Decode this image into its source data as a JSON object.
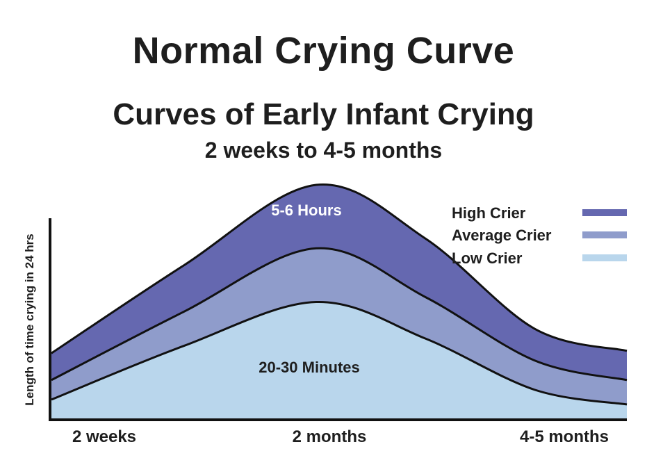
{
  "chart_data": {
    "type": "area",
    "title": "Normal Crying Curve",
    "subtitle": "Curves of Early Infant Crying",
    "subtitle2": "2 weeks to 4-5 months",
    "ylabel": "Length of time crying in 24 hrs",
    "x_tick_labels": [
      "2 weeks",
      "2 months",
      "4-5 months"
    ],
    "series": [
      {
        "name": "High Crier",
        "color": "#6568b0",
        "values": [
          0.27,
          0.63,
          0.96,
          0.74,
          0.37,
          0.28
        ],
        "label": "5-6 Hours"
      },
      {
        "name": "Average Crier",
        "color": "#8f9ccb",
        "values": [
          0.16,
          0.44,
          0.7,
          0.5,
          0.24,
          0.16
        ]
      },
      {
        "name": "Low Crier",
        "color": "#b9d6ec",
        "values": [
          0.08,
          0.3,
          0.48,
          0.33,
          0.12,
          0.06
        ],
        "label": "20-30 Minutes"
      }
    ],
    "x": [
      0,
      0.23,
      0.46,
      0.65,
      0.84,
      1.0
    ],
    "ylim": [
      0,
      1
    ],
    "legend": "top-right",
    "grid": false
  }
}
